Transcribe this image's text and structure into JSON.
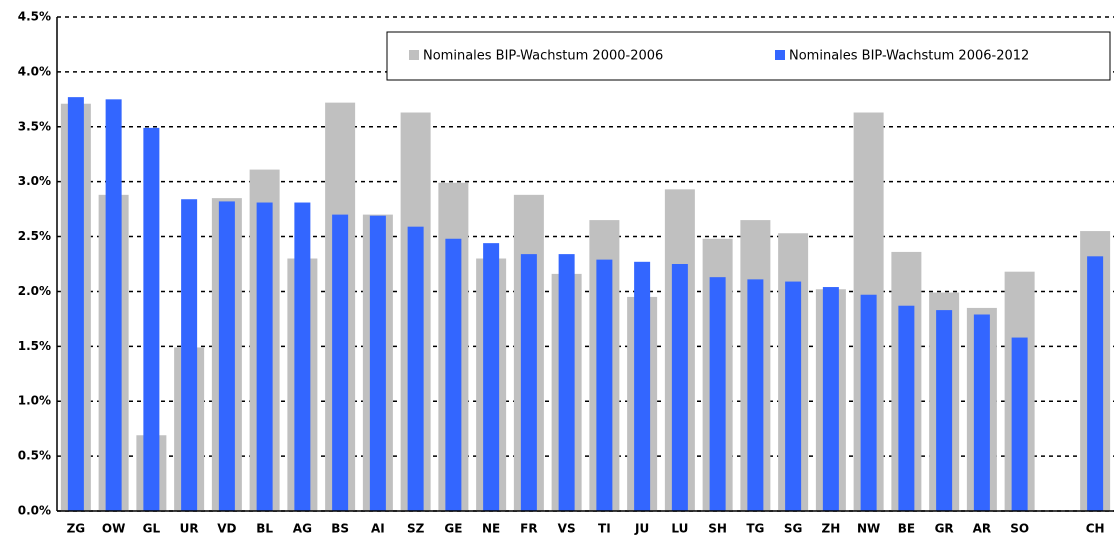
{
  "chart_data": {
    "type": "bar",
    "categories": [
      "ZG",
      "OW",
      "GL",
      "UR",
      "VD",
      "BL",
      "AG",
      "BS",
      "AI",
      "SZ",
      "GE",
      "NE",
      "FR",
      "VS",
      "TI",
      "JU",
      "LU",
      "SH",
      "TG",
      "SG",
      "ZH",
      "NW",
      "BE",
      "GR",
      "AR",
      "SO",
      null,
      "CH"
    ],
    "series": [
      {
        "name": "Nominales BIP-Wachstum 2000-2006",
        "color": "#c0c0c0",
        "values": [
          3.71,
          2.88,
          0.69,
          1.49,
          2.85,
          3.11,
          2.3,
          3.72,
          2.7,
          3.63,
          2.99,
          2.3,
          2.88,
          2.16,
          2.65,
          1.95,
          2.93,
          2.48,
          2.65,
          2.53,
          2.02,
          3.63,
          2.36,
          1.99,
          1.85,
          2.18,
          null,
          2.55
        ]
      },
      {
        "name": "Nominales BIP-Wachstum 2006-2012",
        "color": "#3366ff",
        "values": [
          3.77,
          3.75,
          3.49,
          2.84,
          2.82,
          2.81,
          2.81,
          2.7,
          2.69,
          2.59,
          2.48,
          2.44,
          2.34,
          2.34,
          2.29,
          2.27,
          2.25,
          2.13,
          2.11,
          2.09,
          2.04,
          1.97,
          1.87,
          1.83,
          1.79,
          1.58,
          null,
          2.32
        ]
      }
    ],
    "ylim": [
      0,
      4.5
    ],
    "yticks": [
      {
        "value": 0,
        "label": "0.0%"
      },
      {
        "value": 0.5,
        "label": "0.5%"
      },
      {
        "value": 1,
        "label": "1.0%"
      },
      {
        "value": 1.5,
        "label": "1.5%"
      },
      {
        "value": 2,
        "label": "2.0%"
      },
      {
        "value": 2.5,
        "label": "2.5%"
      },
      {
        "value": 3,
        "label": "3.0%"
      },
      {
        "value": 3.5,
        "label": "3.5%"
      },
      {
        "value": 4,
        "label": "4.0%"
      },
      {
        "value": 4.5,
        "label": "4.5%"
      }
    ],
    "grid": true,
    "legend": "top-right"
  }
}
